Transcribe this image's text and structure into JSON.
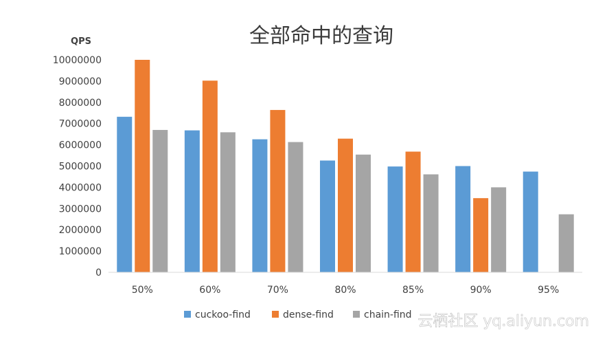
{
  "chart_data": {
    "type": "bar",
    "title": "全部命中的查询",
    "ylabel": "QPS",
    "xlabel": "",
    "categories": [
      "50%",
      "60%",
      "70%",
      "80%",
      "85%",
      "90%",
      "95%"
    ],
    "series": [
      {
        "name": "cuckoo-find",
        "color": "#5b9bd5",
        "values": [
          7320000,
          6680000,
          6260000,
          5260000,
          4980000,
          5000000,
          4740000
        ]
      },
      {
        "name": "dense-find",
        "color": "#ed7d31",
        "values": [
          10000000,
          9020000,
          7640000,
          6290000,
          5680000,
          3490000,
          null
        ]
      },
      {
        "name": "chain-find",
        "color": "#a5a5a5",
        "values": [
          6700000,
          6590000,
          6130000,
          5540000,
          4610000,
          4000000,
          2730000
        ]
      }
    ],
    "ylim": [
      0,
      10000000
    ],
    "yticks": [
      0,
      1000000,
      2000000,
      3000000,
      4000000,
      5000000,
      6000000,
      7000000,
      8000000,
      9000000,
      10000000
    ],
    "ytick_labels": [
      "0",
      "1000000",
      "2000000",
      "3000000",
      "4000000",
      "5000000",
      "6000000",
      "7000000",
      "8000000",
      "9000000",
      "10000000"
    ],
    "grid": false,
    "legend_position": "bottom"
  },
  "watermark": "云栖社区 yq.aliyun.com"
}
